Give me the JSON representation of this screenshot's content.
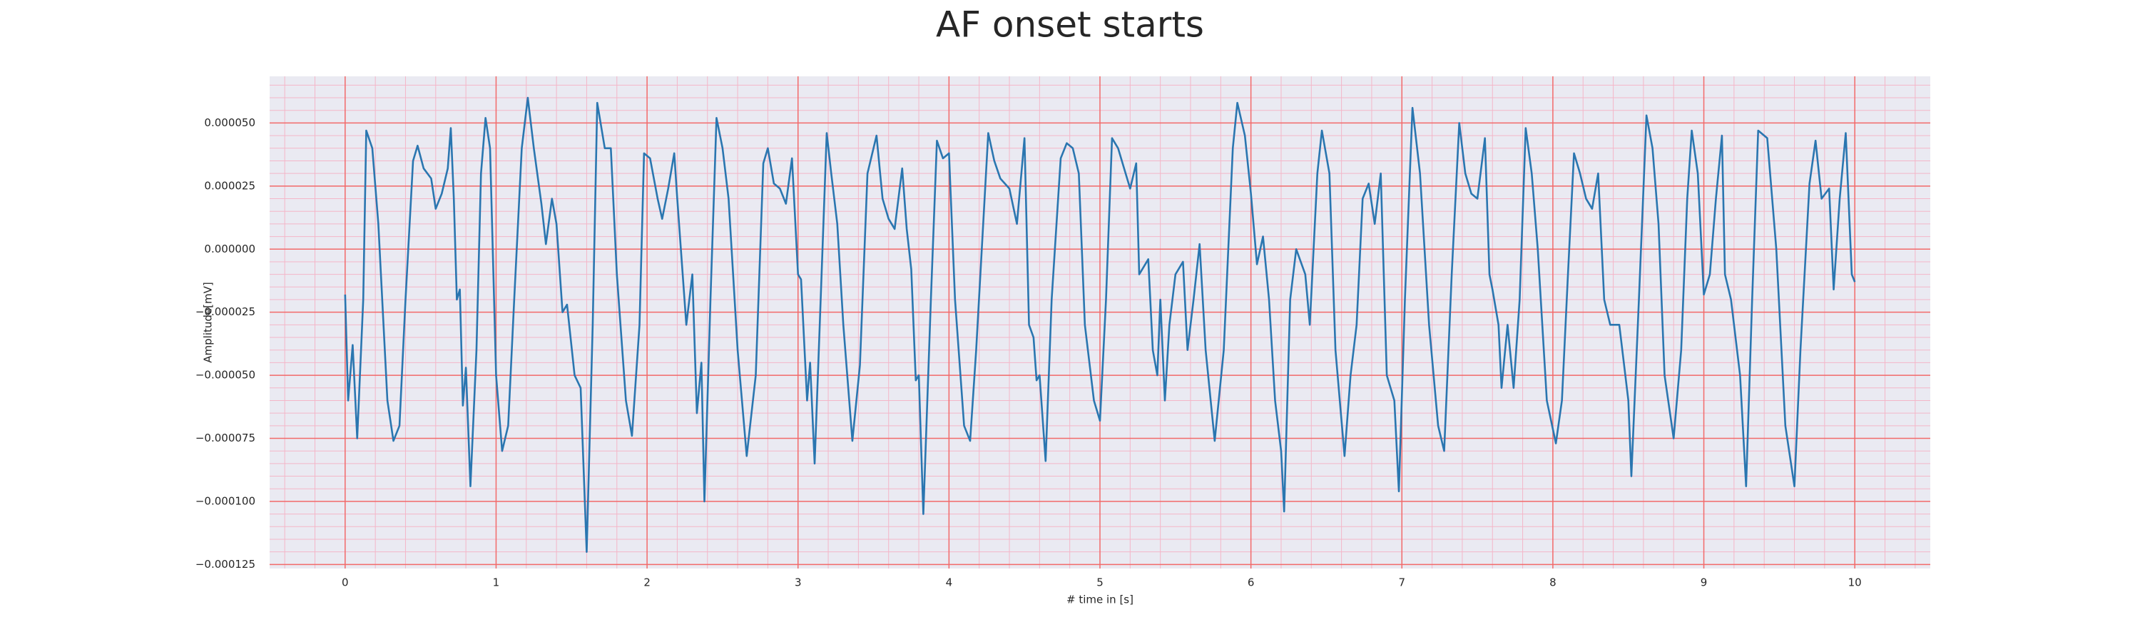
{
  "chart_data": {
    "type": "line",
    "title": "AF onset starts",
    "xlabel": "# time in [s]",
    "ylabel": "Amplitude[mV]",
    "xlim": [
      -0.5,
      10.5
    ],
    "ylim": [
      -0.0001266,
      6.85e-05
    ],
    "xticks": [
      0,
      1,
      2,
      3,
      4,
      5,
      6,
      7,
      8,
      9,
      10
    ],
    "yticks": [
      {
        "value": -0.000125,
        "label": "−0.000125"
      },
      {
        "value": -0.0001,
        "label": "−0.000100"
      },
      {
        "value": -7.5e-05,
        "label": "−0.000075"
      },
      {
        "value": -5e-05,
        "label": "−0.000050"
      },
      {
        "value": -2.5e-05,
        "label": "−0.000025"
      },
      {
        "value": 0,
        "label": "0.000000"
      },
      {
        "value": 2.5e-05,
        "label": "0.000025"
      },
      {
        "value": 5e-05,
        "label": "0.000050"
      }
    ],
    "grid": true,
    "minor_grid": true,
    "grid_color": "#f26a6a",
    "minor_grid_color": "#f4b6c8",
    "background": "#eaeaf2",
    "series": [
      {
        "color": "#2a76b0",
        "x": [
          0,
          0.02,
          0.05,
          0.08,
          0.12,
          0.14,
          0.18,
          0.22,
          0.28,
          0.32,
          0.36,
          0.4,
          0.45,
          0.48,
          0.52,
          0.57,
          0.6,
          0.64,
          0.68,
          0.7,
          0.72,
          0.74,
          0.76,
          0.78,
          0.8,
          0.83,
          0.87,
          0.9,
          0.93,
          0.96,
          1.0,
          1.04,
          1.08,
          1.12,
          1.17,
          1.21,
          1.25,
          1.3,
          1.33,
          1.37,
          1.4,
          1.44,
          1.47,
          1.52,
          1.56,
          1.6,
          1.64,
          1.67,
          1.72,
          1.76,
          1.8,
          1.86,
          1.9,
          1.95,
          1.98,
          2.02,
          2.07,
          2.1,
          2.14,
          2.18,
          2.2,
          2.26,
          2.3,
          2.33,
          2.36,
          2.38,
          2.42,
          2.46,
          2.5,
          2.54,
          2.6,
          2.66,
          2.72,
          2.77,
          2.8,
          2.84,
          2.88,
          2.92,
          2.96,
          3.0,
          3.02,
          3.06,
          3.08,
          3.11,
          3.15,
          3.19,
          3.22,
          3.26,
          3.3,
          3.36,
          3.41,
          3.46,
          3.52,
          3.56,
          3.6,
          3.64,
          3.69,
          3.72,
          3.75,
          3.78,
          3.8,
          3.83,
          3.88,
          3.92,
          3.96,
          4.0,
          4.04,
          4.1,
          4.14,
          4.18,
          4.26,
          4.3,
          4.34,
          4.4,
          4.45,
          4.5,
          4.53,
          4.56,
          4.58,
          4.6,
          4.64,
          4.68,
          4.74,
          4.78,
          4.82,
          4.86,
          4.9,
          4.96,
          5.0,
          5.04,
          5.08,
          5.12,
          5.16,
          5.2,
          5.24,
          5.26,
          5.32,
          5.35,
          5.38,
          5.4,
          5.43,
          5.46,
          5.5,
          5.55,
          5.58,
          5.62,
          5.66,
          5.7,
          5.76,
          5.82,
          5.88,
          5.91,
          5.96,
          6.0,
          6.04,
          6.08,
          6.12,
          6.16,
          6.2,
          6.22,
          6.26,
          6.3,
          6.36,
          6.39,
          6.44,
          6.47,
          6.52,
          6.56,
          6.62,
          6.66,
          6.7,
          6.74,
          6.78,
          6.82,
          6.86,
          6.9,
          6.95,
          6.98,
          7.02,
          7.07,
          7.12,
          7.18,
          7.24,
          7.28,
          7.33,
          7.38,
          7.42,
          7.46,
          7.5,
          7.55,
          7.58,
          7.6,
          7.64,
          7.66,
          7.7,
          7.74,
          7.78,
          7.82,
          7.86,
          7.9,
          7.96,
          8.02,
          8.06,
          8.1,
          8.14,
          8.18,
          8.22,
          8.26,
          8.3,
          8.34,
          8.38,
          8.44,
          8.5,
          8.52,
          8.57,
          8.62,
          8.66,
          8.7,
          8.74,
          8.8,
          8.85,
          8.89,
          8.92,
          8.96,
          9.0,
          9.04,
          9.08,
          9.12,
          9.14,
          9.18,
          9.24,
          9.28,
          9.32,
          9.36,
          9.42,
          9.48,
          9.54,
          9.6,
          9.64,
          9.7,
          9.74,
          9.78,
          9.83,
          9.86,
          9.9,
          9.94,
          9.98,
          10.0
        ],
        "values": [
          -1.8e-05,
          -6e-05,
          -3.8e-05,
          -7.5e-05,
          -2e-05,
          4.7e-05,
          4e-05,
          1e-05,
          -6e-05,
          -7.6e-05,
          -7e-05,
          -2e-05,
          3.5e-05,
          4.1e-05,
          3.2e-05,
          2.8e-05,
          1.6e-05,
          2.2e-05,
          3.2e-05,
          4.8e-05,
          2e-05,
          -2e-05,
          -1.6e-05,
          -6.2e-05,
          -4.7e-05,
          -9.4e-05,
          -4e-05,
          3e-05,
          5.2e-05,
          4e-05,
          -5e-05,
          -8e-05,
          -7e-05,
          -2e-05,
          4e-05,
          6e-05,
          4e-05,
          1.8e-05,
          2e-06,
          2e-05,
          1e-05,
          -2.5e-05,
          -2.2e-05,
          -5e-05,
          -5.5e-05,
          -0.00012,
          -3e-05,
          5.8e-05,
          4e-05,
          4e-05,
          -1e-05,
          -6e-05,
          -7.4e-05,
          -3e-05,
          3.8e-05,
          3.6e-05,
          2e-05,
          1.2e-05,
          2.4e-05,
          3.8e-05,
          2e-05,
          -3e-05,
          -1e-05,
          -6.5e-05,
          -4.5e-05,
          -0.0001,
          -2e-05,
          5.2e-05,
          4e-05,
          2e-05,
          -4e-05,
          -8.2e-05,
          -5e-05,
          3.4e-05,
          4e-05,
          2.6e-05,
          2.4e-05,
          1.8e-05,
          3.6e-05,
          -1e-05,
          -1.2e-05,
          -6e-05,
          -4.5e-05,
          -8.5e-05,
          -2e-05,
          4.6e-05,
          3e-05,
          1e-05,
          -3e-05,
          -7.6e-05,
          -4.6e-05,
          3e-05,
          4.5e-05,
          2e-05,
          1.2e-05,
          8e-06,
          3.2e-05,
          8e-06,
          -8e-06,
          -5.2e-05,
          -5e-05,
          -0.000105,
          -2e-05,
          4.3e-05,
          3.6e-05,
          3.8e-05,
          -2e-05,
          -7e-05,
          -7.6e-05,
          -4e-05,
          4.6e-05,
          3.5e-05,
          2.8e-05,
          2.4e-05,
          1e-05,
          4.4e-05,
          -3e-05,
          -3.5e-05,
          -5.2e-05,
          -5e-05,
          -8.4e-05,
          -2e-05,
          3.6e-05,
          4.2e-05,
          4e-05,
          3e-05,
          -3e-05,
          -6e-05,
          -6.8e-05,
          -2e-05,
          4.4e-05,
          4e-05,
          3.2e-05,
          2.4e-05,
          3.4e-05,
          -1e-05,
          -4e-06,
          -4e-05,
          -5e-05,
          -2e-05,
          -6e-05,
          -3e-05,
          -1e-05,
          -5e-06,
          -4e-05,
          -2e-05,
          2e-06,
          -4e-05,
          -7.6e-05,
          -4e-05,
          4e-05,
          5.8e-05,
          4.5e-05,
          2.2e-05,
          -6e-06,
          5e-06,
          -2e-05,
          -6e-05,
          -8e-05,
          -0.000104,
          -2e-05,
          0,
          -1e-05,
          -3e-05,
          3e-05,
          4.7e-05,
          3e-05,
          -4e-05,
          -8.2e-05,
          -5e-05,
          -3e-05,
          2e-05,
          2.6e-05,
          1e-05,
          3e-05,
          -5e-05,
          -6e-05,
          -9.6e-05,
          -2e-05,
          5.6e-05,
          3e-05,
          -3e-05,
          -7e-05,
          -8e-05,
          -1e-05,
          5e-05,
          3e-05,
          2.2e-05,
          2e-05,
          4.4e-05,
          -1e-05,
          -1.6e-05,
          -3e-05,
          -5.5e-05,
          -3e-05,
          -5.5e-05,
          -2e-05,
          4.8e-05,
          3e-05,
          0,
          -6e-05,
          -7.7e-05,
          -6e-05,
          -1e-05,
          3.8e-05,
          3e-05,
          2e-05,
          1.6e-05,
          3e-05,
          -2e-05,
          -3e-05,
          -3e-05,
          -6e-05,
          -9e-05,
          -2e-05,
          5.3e-05,
          4e-05,
          1e-05,
          -5e-05,
          -7.5e-05,
          -4e-05,
          2e-05,
          4.7e-05,
          3e-05,
          -1.8e-05,
          -1e-05,
          2e-05,
          4.5e-05,
          -1e-05,
          -2e-05,
          -5e-05,
          -9.4e-05,
          -2e-05,
          4.7e-05,
          4.4e-05,
          0,
          -7e-05,
          -9.4e-05,
          -4e-05,
          2.6e-05,
          4.3e-05,
          2e-05,
          2.4e-05,
          -1.6e-05,
          2e-05,
          4.6e-05,
          -1e-05,
          -1.3e-05
        ]
      }
    ]
  }
}
